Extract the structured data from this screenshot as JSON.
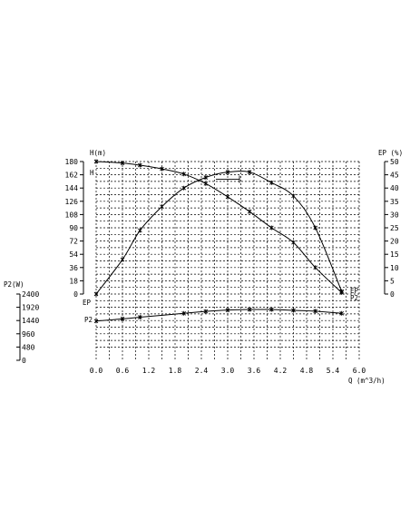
{
  "chart_data": {
    "type": "line",
    "title": "",
    "grid": true,
    "x_axis": {
      "label": "Q (m^3/h)",
      "range": [
        0.0,
        6.0
      ],
      "ticks": [
        "0.0",
        "0.6",
        "1.2",
        "1.8",
        "2.4",
        "3.0",
        "3.6",
        "4.2",
        "4.8",
        "5.4",
        "6.0"
      ]
    },
    "h_axis": {
      "label": "H(m)",
      "range": [
        0,
        180
      ],
      "ticks": [
        "180",
        "162",
        "144",
        "126",
        "108",
        "90",
        "72",
        "54",
        "36",
        "18",
        "0"
      ]
    },
    "ep_axis": {
      "label": "EP (%)",
      "range": [
        0,
        50
      ],
      "ticks": [
        "50",
        "45",
        "40",
        "35",
        "30",
        "25",
        "20",
        "15",
        "10",
        "5",
        "0"
      ]
    },
    "p2_axis": {
      "label": "P2(W)",
      "range": [
        0,
        2400
      ],
      "ticks": [
        "2400",
        "1920",
        "1440",
        "960",
        "480",
        "0"
      ]
    },
    "series": [
      {
        "name": "H",
        "axis": "h",
        "label_left": "H",
        "label_right": "",
        "x": [
          0.0,
          0.6,
          1.0,
          1.5,
          2.0,
          2.5,
          3.0,
          3.5,
          4.0,
          4.5,
          5.0,
          5.6
        ],
        "values": [
          180,
          178,
          175,
          170,
          163,
          150,
          132,
          112,
          90,
          70,
          36,
          2
        ]
      },
      {
        "name": "EP",
        "axis": "ep",
        "label_left": "",
        "label_right": "EP",
        "x": [
          0.0,
          0.6,
          1.0,
          1.5,
          2.0,
          2.5,
          3.0,
          3.5,
          4.0,
          4.5,
          5.0,
          5.6
        ],
        "values": [
          0,
          13,
          24,
          33,
          40,
          44,
          46,
          46,
          42,
          37,
          25,
          1
        ]
      },
      {
        "name": "P2",
        "axis": "p2",
        "label_left": "P2",
        "label_right": "P2",
        "x": [
          0.0,
          0.6,
          1.0,
          2.0,
          2.5,
          3.0,
          3.5,
          4.0,
          4.5,
          5.0,
          5.6
        ],
        "values": [
          1420,
          1500,
          1560,
          1700,
          1770,
          1820,
          1840,
          1840,
          1810,
          1780,
          1700
        ]
      }
    ],
    "annotation_marker": {
      "x": 3.0,
      "y": 156,
      "axis": "h"
    }
  }
}
